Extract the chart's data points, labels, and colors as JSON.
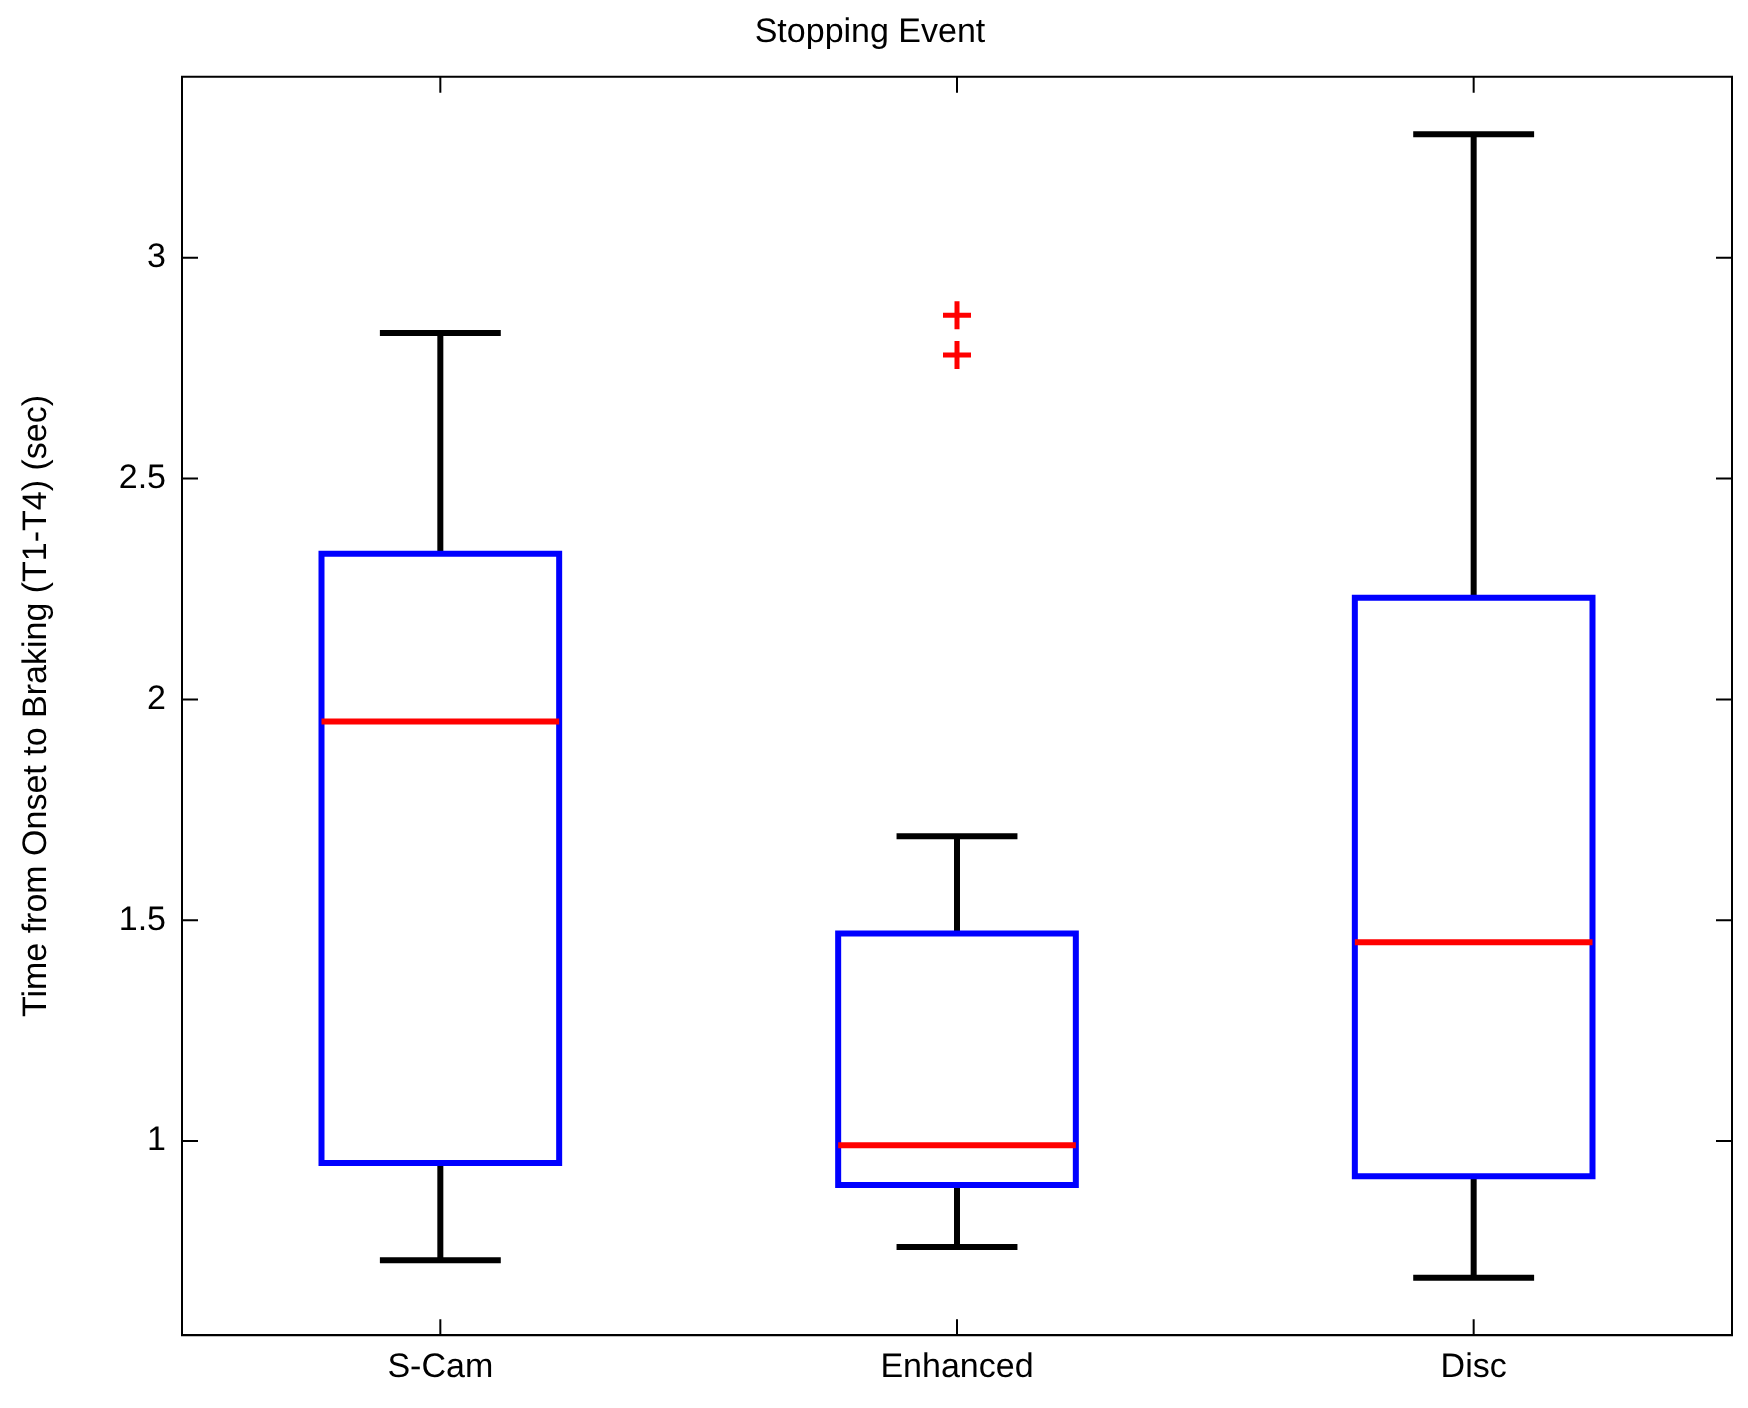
{
  "chart_data": {
    "type": "box",
    "title": "Stopping Event",
    "ylabel": "Time from Onset to Braking (T1-T4) (sec)",
    "categories": [
      "S-Cam",
      "Enhanced",
      "Disc"
    ],
    "color": "#0000ff",
    "boxes": [
      {
        "low": 0.73,
        "q1": 0.95,
        "median": 1.95,
        "q3": 2.33,
        "high": 2.83
      },
      {
        "low": 0.76,
        "q1": 0.9,
        "median": 0.99,
        "q3": 1.47,
        "high": 1.69,
        "outliers": [
          2.87,
          2.78
        ]
      },
      {
        "low": 0.69,
        "q1": 0.92,
        "median": 1.45,
        "q3": 2.23,
        "high": 3.28
      }
    ],
    "ylim": [
      0.56,
      3.41
    ],
    "yticks": [
      1,
      1.5,
      2,
      2.5,
      3
    ],
    "grid": false,
    "legend": false,
    "marker": "cross"
  }
}
